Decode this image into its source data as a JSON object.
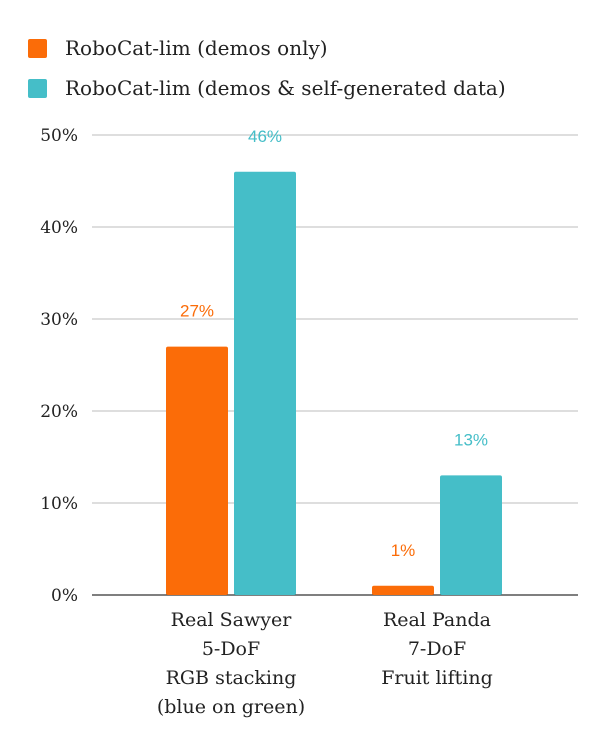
{
  "chart_data": {
    "type": "bar",
    "categories": [
      [
        "Real Sawyer",
        "5-DoF",
        "RGB stacking",
        "(blue on green)"
      ],
      [
        "Real Panda",
        "7-DoF",
        "Fruit lifting"
      ]
    ],
    "series": [
      {
        "name": "RoboCat-lim (demos only)",
        "values": [
          27,
          1
        ],
        "labels": [
          "27%",
          "1%"
        ],
        "color": "#fb6c08"
      },
      {
        "name": "RoboCat-lim (demos & self-generated data)",
        "values": [
          46,
          13
        ],
        "labels": [
          "46%",
          "13%"
        ],
        "color": "#45bec8"
      }
    ],
    "yticks": [
      "0%",
      "10%",
      "20%",
      "30%",
      "40%",
      "50%"
    ],
    "ylim": [
      0,
      50
    ],
    "grid": true,
    "legend_position": "top-left",
    "xlabel": "",
    "ylabel": ""
  }
}
